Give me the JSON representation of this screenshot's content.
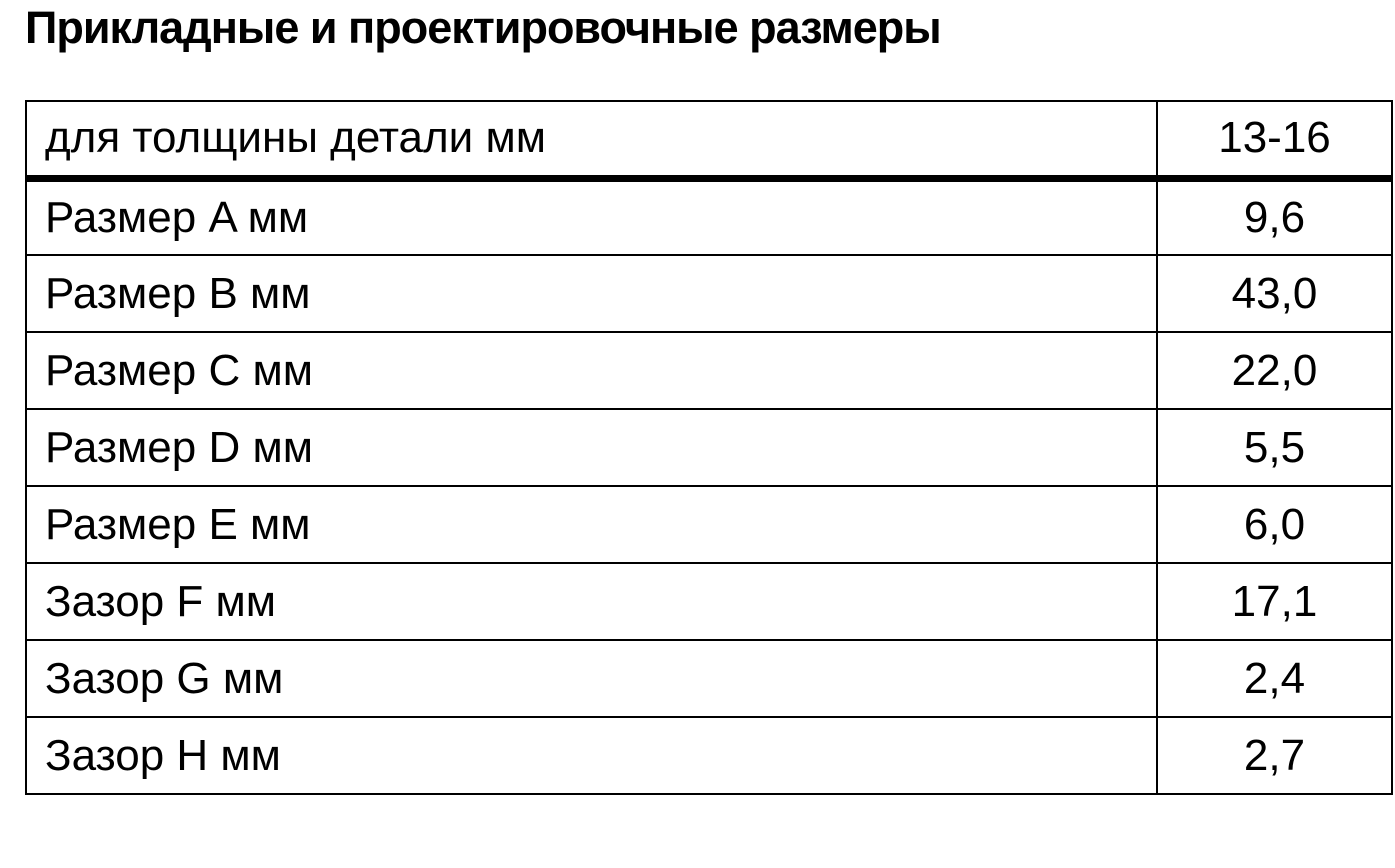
{
  "page": {
    "title": "Прикладные и проектировочные размеры"
  },
  "table": {
    "header": {
      "label": "для толщины детали мм",
      "value": "13-16"
    },
    "rows": [
      {
        "label": "Размер A мм",
        "value": "9,6"
      },
      {
        "label": "Размер B мм",
        "value": "43,0"
      },
      {
        "label": "Размер C мм",
        "value": "22,0"
      },
      {
        "label": "Размер D мм",
        "value": "5,5"
      },
      {
        "label": "Размер E мм",
        "value": "6,0"
      },
      {
        "label": "Зазор F мм",
        "value": "17,1"
      },
      {
        "label": "Зазор G мм",
        "value": "2,4"
      },
      {
        "label": "Зазор H мм",
        "value": "2,7"
      }
    ]
  },
  "colors": {
    "text": "#000000",
    "border": "#000000",
    "background": "#ffffff"
  }
}
